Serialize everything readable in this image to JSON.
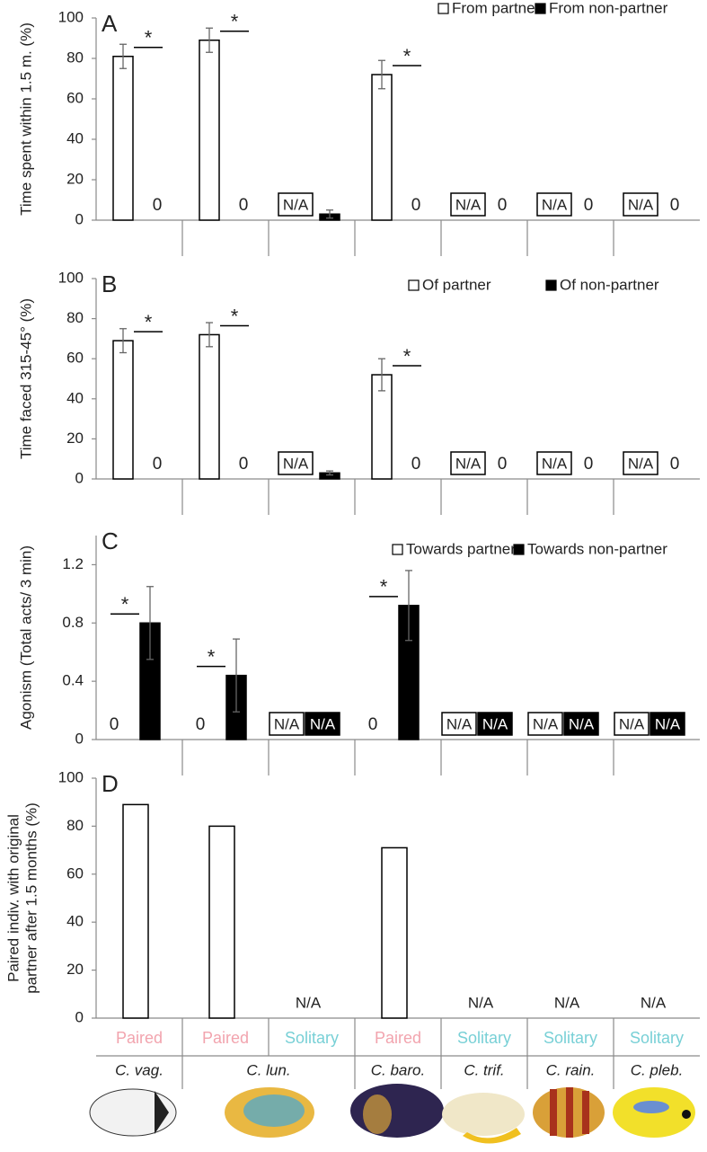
{
  "chart_data": [
    {
      "type": "bar",
      "label": "A",
      "ylabel": "Time spent within 1.5 m. (%)",
      "ylim": [
        0,
        100
      ],
      "yticks": [
        0,
        20,
        40,
        60,
        80,
        100
      ],
      "legend": true,
      "series": [
        {
          "name": "From partner",
          "color": "#ffffff",
          "values": [
            81,
            89,
            null,
            72,
            null,
            null,
            null
          ],
          "errors": [
            6,
            6,
            null,
            7,
            null,
            null,
            null
          ],
          "value_labels": [
            null,
            null,
            "N/A",
            null,
            "N/A",
            "N/A",
            "N/A"
          ]
        },
        {
          "name": "From non-partner",
          "color": "#000000",
          "values": [
            0,
            0,
            3,
            0,
            0,
            0,
            0
          ],
          "errors": [
            null,
            null,
            2,
            null,
            null,
            null,
            null
          ]
        }
      ],
      "significance": [
        "*",
        "*",
        null,
        "*",
        null,
        null,
        null
      ]
    },
    {
      "type": "bar",
      "label": "B",
      "ylabel": "Time faced 315-45° (%)",
      "ylim": [
        0,
        100
      ],
      "yticks": [
        0,
        20,
        40,
        60,
        80,
        100
      ],
      "legend": true,
      "series": [
        {
          "name": "Of partner",
          "color": "#ffffff",
          "values": [
            69,
            72,
            null,
            52,
            null,
            null,
            null
          ],
          "errors": [
            6,
            6,
            null,
            8,
            null,
            null,
            null
          ],
          "value_labels": [
            null,
            null,
            "N/A",
            null,
            "N/A",
            "N/A",
            "N/A"
          ]
        },
        {
          "name": "Of non-partner",
          "color": "#000000",
          "values": [
            0,
            0,
            3,
            0,
            0,
            0,
            0
          ],
          "errors": [
            null,
            null,
            1,
            null,
            null,
            null,
            null
          ]
        }
      ],
      "significance": [
        "*",
        "*",
        null,
        "*",
        null,
        null,
        null
      ]
    },
    {
      "type": "bar",
      "label": "C",
      "ylabel": "Agonism (Total acts/ 3 min)",
      "ylim": [
        0,
        1.4
      ],
      "yticks": [
        0,
        0.4,
        0.8,
        1.2
      ],
      "legend": true,
      "series": [
        {
          "name": "Towards partner",
          "color": "#ffffff",
          "values": [
            0,
            0,
            null,
            0,
            null,
            null,
            null
          ],
          "value_labels": [
            null,
            null,
            "N/A",
            null,
            "N/A",
            "N/A",
            "N/A"
          ]
        },
        {
          "name": "Towards non-partner",
          "color": "#000000",
          "values": [
            0.8,
            0.44,
            null,
            0.92,
            null,
            null,
            null
          ],
          "errors": [
            0.25,
            0.25,
            null,
            0.24,
            null,
            null,
            null
          ],
          "value_labels": [
            null,
            null,
            "N/A",
            null,
            "N/A",
            "N/A",
            "N/A"
          ]
        }
      ],
      "significance": [
        "*",
        "*",
        null,
        "*",
        null,
        null,
        null
      ]
    },
    {
      "type": "bar",
      "label": "D",
      "ylabel": [
        "Paired indiv. with original",
        "partner after 1.5 months (%)"
      ],
      "ylim": [
        0,
        100
      ],
      "yticks": [
        0,
        20,
        40,
        60,
        80,
        100
      ],
      "legend": false,
      "series": [
        {
          "color": "#ffffff",
          "values": [
            89,
            80,
            null,
            71,
            null,
            null,
            null
          ],
          "value_labels": [
            null,
            null,
            "N/A",
            null,
            "N/A",
            "N/A",
            "N/A"
          ]
        }
      ],
      "groups": [
        "Paired",
        "Paired",
        "Solitary",
        "Paired",
        "Solitary",
        "Solitary",
        "Solitary"
      ],
      "group_colors": [
        "#f2a4ae",
        "#f2a4ae",
        "#78d0d6",
        "#f2a4ae",
        "#78d0d6",
        "#78d0d6",
        "#78d0d6"
      ],
      "species": [
        {
          "name": "C. vag.",
          "span": 1
        },
        {
          "name": "C. lun.",
          "span": 2
        },
        {
          "name": "C. baro.",
          "span": 1
        },
        {
          "name": "C. trif.",
          "span": 1
        },
        {
          "name": "C. rain.",
          "span": 1
        },
        {
          "name": "C. pleb.",
          "span": 1
        }
      ]
    }
  ]
}
